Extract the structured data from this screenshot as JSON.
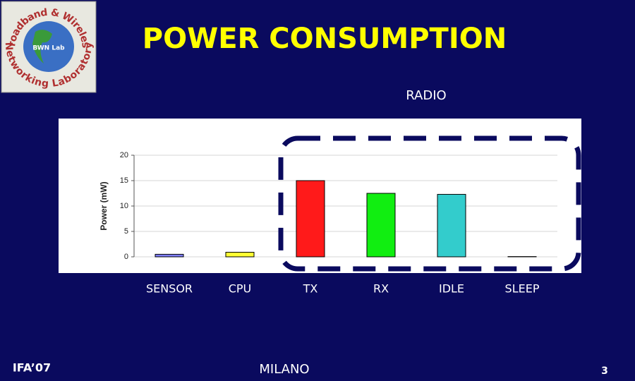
{
  "header": {
    "title": "POWER CONSUMPTION",
    "logo": {
      "top": "Broadband & Wireless",
      "bottom": "Networking Laboratory",
      "center": "BWN Lab"
    }
  },
  "chart_data": {
    "type": "bar",
    "annotation": "RADIO",
    "y_label": "Power (mW)",
    "categories": [
      "SENSOR",
      "CPU",
      "TX",
      "RX",
      "IDLE",
      "SLEEP"
    ],
    "values": [
      0.5,
      0.9,
      15,
      12.5,
      12.3,
      0.05
    ],
    "colors": [
      "#7f7fff",
      "#ffff33",
      "#ff1a1a",
      "#11ee11",
      "#33cccc",
      "#ffff33"
    ],
    "ylim": [
      0,
      20
    ],
    "yticks": [
      0,
      5,
      10,
      15,
      20
    ],
    "grid": true
  },
  "footer": {
    "left": "IFA’07",
    "center": "MILANO",
    "page": "3"
  }
}
